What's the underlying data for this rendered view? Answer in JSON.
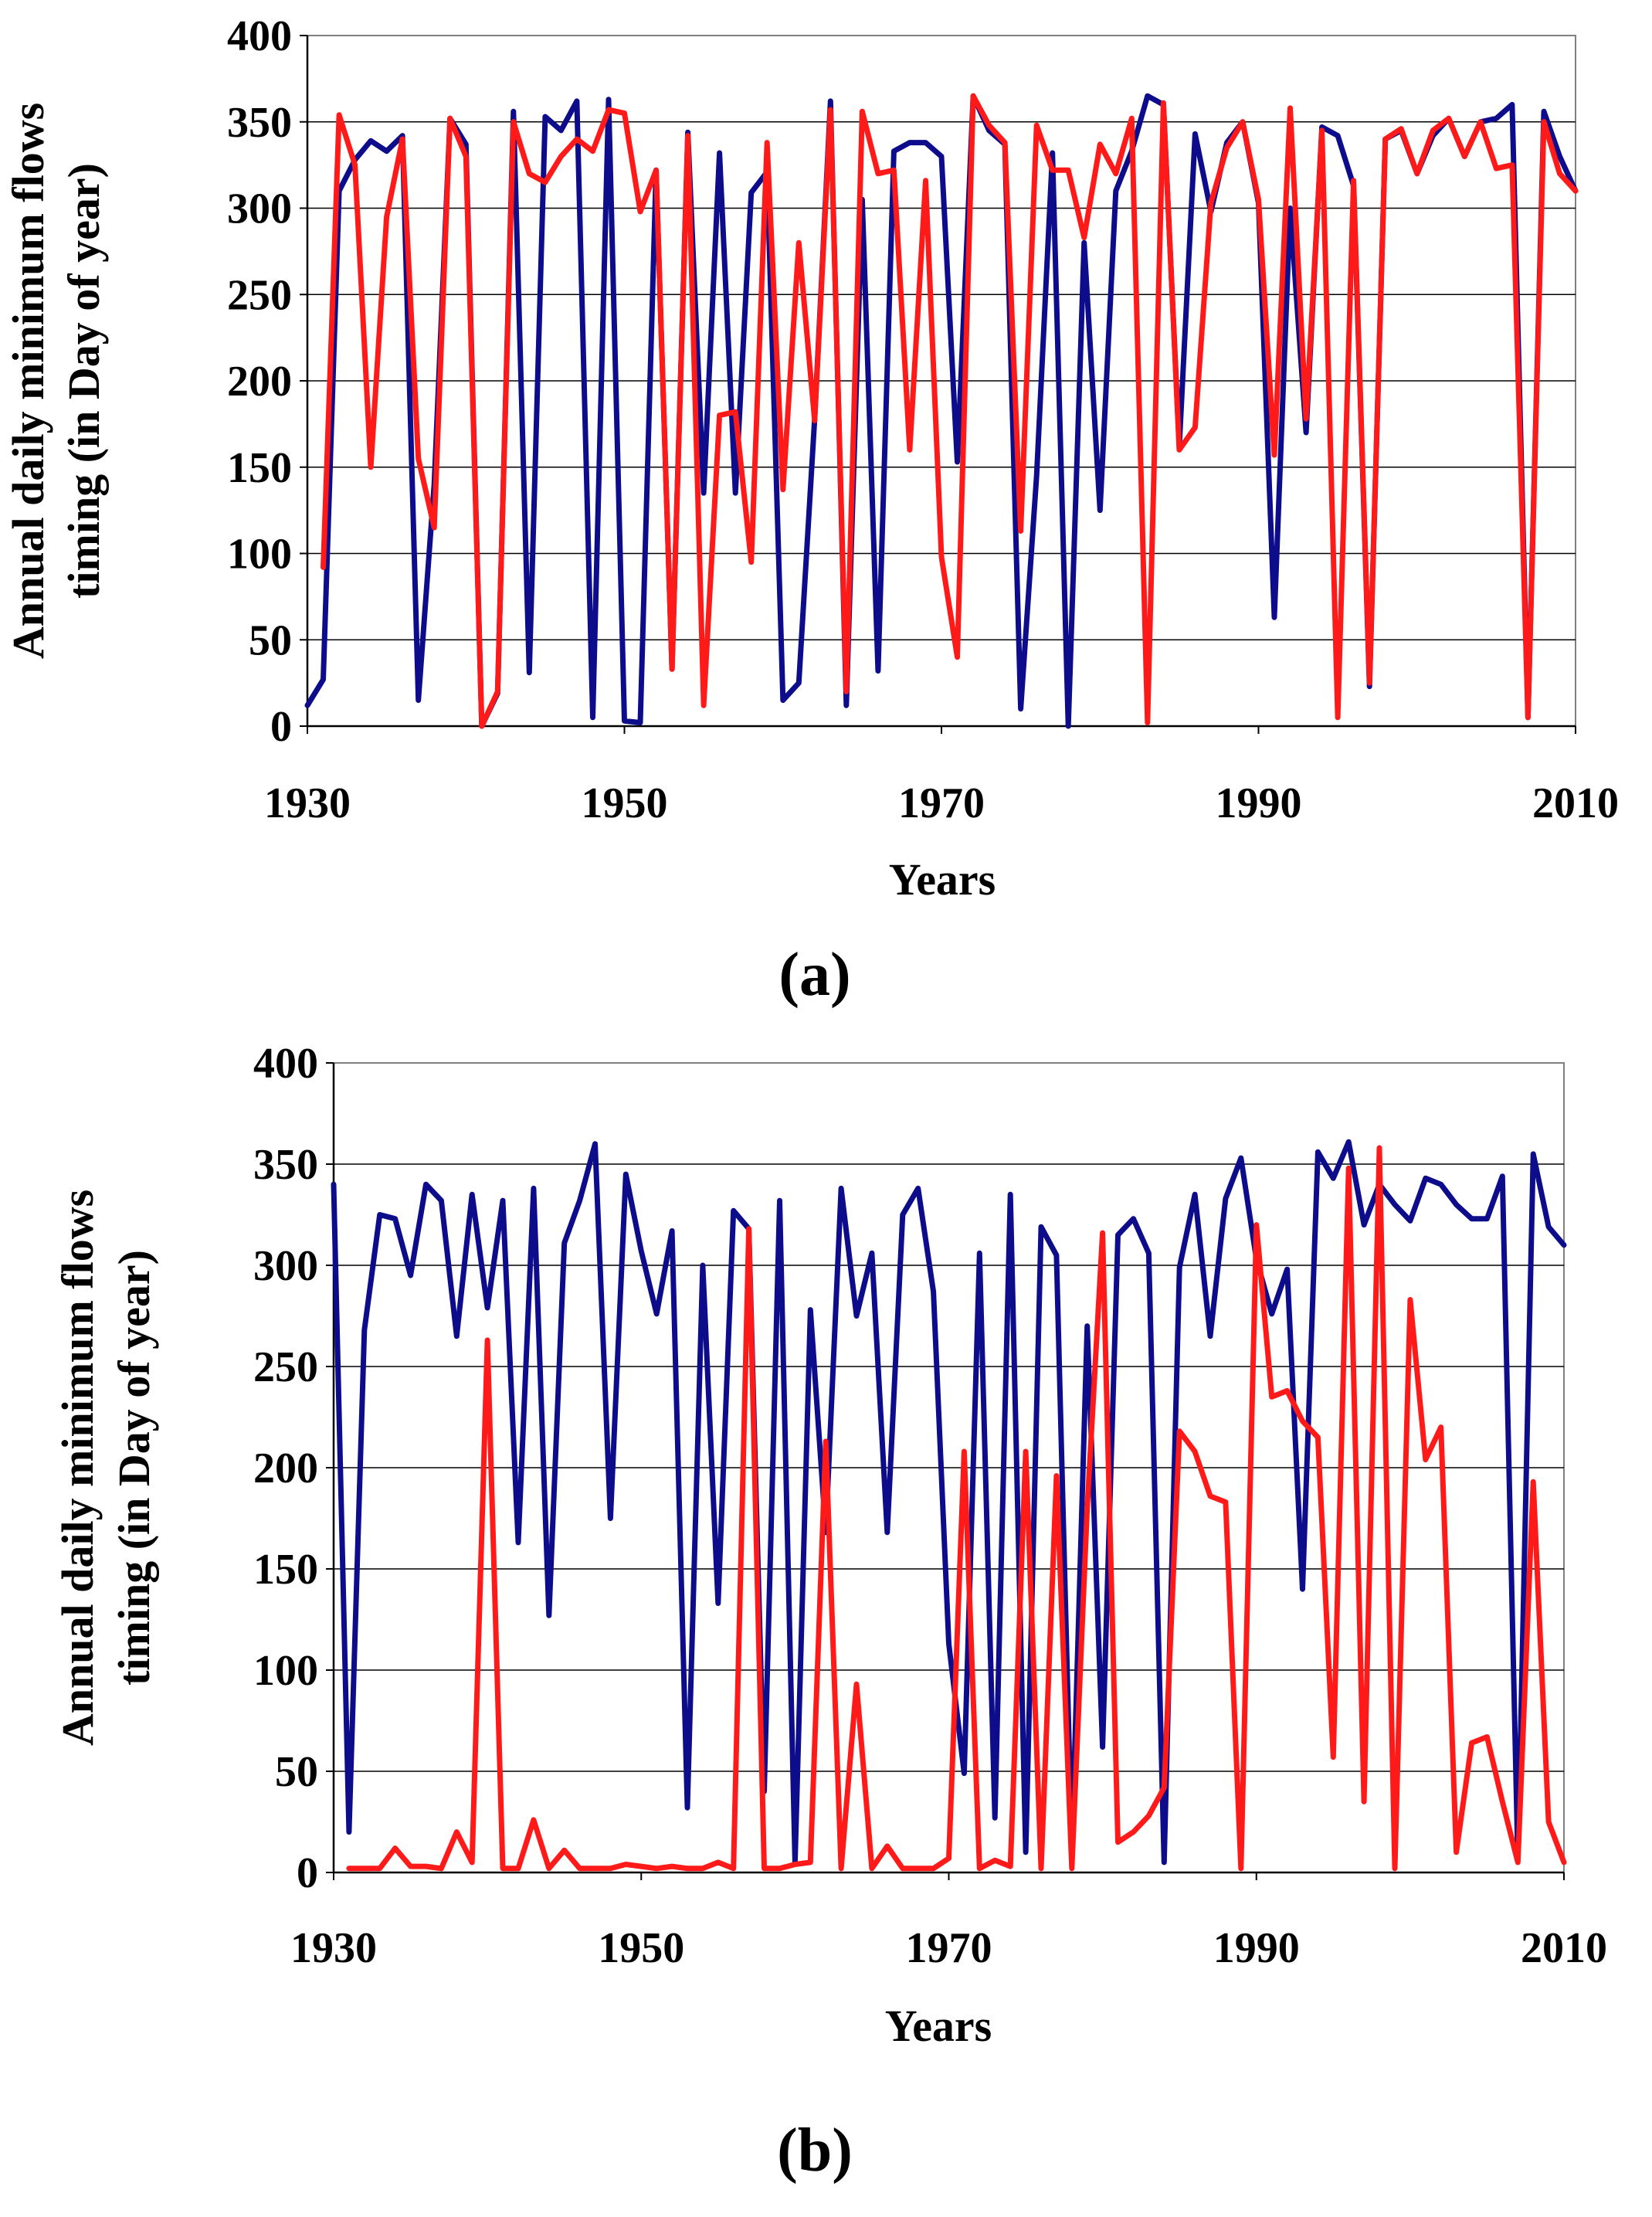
{
  "chart_data": [
    {
      "type": "line",
      "panel_label": "(a)",
      "xlabel": "Years",
      "ylabel_lines": [
        "Annual daily minimum flows",
        "timing (in Day of year)"
      ],
      "xlim": [
        1930,
        2010
      ],
      "ylim": [
        0,
        400
      ],
      "xticks": [
        "1930",
        "1950",
        "1970",
        "1990",
        "2010"
      ],
      "yticks": [
        "0",
        "50",
        "100",
        "150",
        "200",
        "250",
        "300",
        "350",
        "400"
      ],
      "grid": "horizontal",
      "series": [
        {
          "name": "blue",
          "color": "#0d0d8c",
          "x": [
            1930,
            1931,
            1932,
            1933,
            1934,
            1935,
            1936,
            1937,
            1938,
            1939,
            1940,
            1941,
            1942,
            1943,
            1944,
            1945,
            1946,
            1947,
            1948,
            1949,
            1950,
            1951,
            1952,
            1953,
            1954,
            1955,
            1956,
            1957,
            1958,
            1959,
            1960,
            1961,
            1962,
            1963,
            1964,
            1965,
            1966,
            1967,
            1968,
            1969,
            1970,
            1971,
            1972,
            1973,
            1974,
            1975,
            1976,
            1977,
            1978,
            1979,
            1980,
            1981,
            1982,
            1983,
            1984,
            1985,
            1986,
            1987,
            1988,
            1989,
            1990,
            1991,
            1992,
            1993,
            1994,
            1995,
            1996,
            1997,
            1998,
            1999,
            2000,
            2001,
            2002,
            2003,
            2004,
            2005,
            2006,
            2007,
            2008,
            2009,
            2010
          ],
          "y": [
            12,
            27,
            310,
            328,
            339,
            333,
            342,
            15,
            140,
            352,
            337,
            0,
            19,
            356,
            31,
            353,
            345,
            362,
            5,
            363,
            3,
            2,
            322,
            33,
            344,
            135,
            332,
            135,
            309,
            321,
            15,
            25,
            178,
            362,
            12,
            305,
            32,
            333,
            338,
            338,
            330,
            153,
            365,
            345,
            337,
            10,
            145,
            332,
            0,
            280,
            125,
            310,
            333,
            365,
            360,
            162,
            343,
            298,
            338,
            350,
            303,
            63,
            300,
            170,
            347,
            342,
            313,
            23,
            340,
            345,
            320,
            342,
            352,
            330,
            350,
            352,
            360,
            5,
            356,
            330,
            310
          ]
        },
        {
          "name": "red",
          "color": "#ff1a1a",
          "x": [
            1931,
            1932,
            1933,
            1934,
            1935,
            1936,
            1937,
            1938,
            1939,
            1940,
            1941,
            1942,
            1943,
            1944,
            1945,
            1946,
            1947,
            1948,
            1949,
            1950,
            1951,
            1952,
            1953,
            1954,
            1955,
            1956,
            1957,
            1958,
            1959,
            1960,
            1961,
            1962,
            1963,
            1964,
            1965,
            1966,
            1967,
            1968,
            1969,
            1970,
            1971,
            1972,
            1973,
            1974,
            1975,
            1976,
            1977,
            1978,
            1979,
            1980,
            1981,
            1982,
            1983,
            1984,
            1985,
            1986,
            1987,
            1988,
            1989,
            1990,
            1991,
            1992,
            1993,
            1994,
            1995,
            1996,
            1997,
            1998,
            1999,
            2000,
            2001,
            2002,
            2003,
            2004,
            2005,
            2006,
            2007,
            2008,
            2009,
            2010
          ],
          "y": [
            92,
            354,
            325,
            150,
            295,
            340,
            155,
            115,
            352,
            330,
            0,
            20,
            350,
            320,
            315,
            330,
            340,
            333,
            357,
            355,
            298,
            322,
            33,
            342,
            12,
            180,
            182,
            95,
            338,
            137,
            280,
            177,
            357,
            20,
            356,
            320,
            322,
            160,
            316,
            98,
            40,
            365,
            348,
            338,
            113,
            348,
            322,
            322,
            283,
            337,
            320,
            352,
            2,
            361,
            160,
            173,
            303,
            335,
            350,
            305,
            157,
            358,
            178,
            345,
            5,
            316,
            25,
            340,
            346,
            320,
            345,
            352,
            330,
            350,
            323,
            325,
            5,
            350,
            320,
            310
          ]
        }
      ]
    },
    {
      "type": "line",
      "panel_label": "(b)",
      "xlabel": "Years",
      "ylabel_lines": [
        "Annual daily minimum flows",
        "timing (in Day of year)"
      ],
      "xlim": [
        1930,
        2010
      ],
      "ylim": [
        0,
        400
      ],
      "xticks": [
        "1930",
        "1950",
        "1970",
        "1990",
        "2010"
      ],
      "yticks": [
        "0",
        "50",
        "100",
        "150",
        "200",
        "250",
        "300",
        "350",
        "400"
      ],
      "grid": "horizontal",
      "series": [
        {
          "name": "blue",
          "color": "#0d0d8c",
          "x": [
            1930,
            1931,
            1932,
            1933,
            1934,
            1935,
            1936,
            1937,
            1938,
            1939,
            1940,
            1941,
            1942,
            1943,
            1944,
            1945,
            1946,
            1947,
            1948,
            1949,
            1950,
            1951,
            1952,
            1953,
            1954,
            1955,
            1956,
            1957,
            1958,
            1959,
            1960,
            1961,
            1962,
            1963,
            1964,
            1965,
            1966,
            1967,
            1968,
            1969,
            1970,
            1971,
            1972,
            1973,
            1974,
            1975,
            1976,
            1977,
            1978,
            1979,
            1980,
            1981,
            1982,
            1983,
            1984,
            1985,
            1986,
            1987,
            1988,
            1989,
            1990,
            1991,
            1992,
            1993,
            1994,
            1995,
            1996,
            1997,
            1998,
            1999,
            2000,
            2001,
            2002,
            2003,
            2004,
            2005,
            2006,
            2007,
            2008,
            2009,
            2010
          ],
          "y": [
            340,
            20,
            268,
            325,
            323,
            295,
            340,
            332,
            265,
            335,
            279,
            332,
            163,
            338,
            127,
            311,
            332,
            360,
            175,
            345,
            307,
            276,
            317,
            32,
            300,
            133,
            327,
            318,
            40,
            332,
            5,
            278,
            168,
            338,
            275,
            306,
            168,
            325,
            338,
            287,
            113,
            49,
            306,
            27,
            335,
            10,
            319,
            305,
            11,
            270,
            62,
            315,
            323,
            306,
            5,
            299,
            335,
            265,
            333,
            353,
            303,
            276,
            298,
            140,
            356,
            343,
            361,
            320,
            340,
            330,
            322,
            343,
            340,
            330,
            323,
            323,
            344,
            6,
            355,
            319,
            310
          ]
        },
        {
          "name": "red",
          "color": "#ff1a1a",
          "x": [
            1931,
            1932,
            1933,
            1934,
            1935,
            1936,
            1937,
            1938,
            1939,
            1940,
            1941,
            1942,
            1943,
            1944,
            1945,
            1946,
            1947,
            1948,
            1949,
            1950,
            1951,
            1952,
            1953,
            1954,
            1955,
            1956,
            1957,
            1958,
            1959,
            1960,
            1961,
            1962,
            1963,
            1964,
            1965,
            1966,
            1967,
            1968,
            1969,
            1970,
            1971,
            1972,
            1973,
            1974,
            1975,
            1976,
            1977,
            1978,
            1979,
            1980,
            1981,
            1982,
            1983,
            1984,
            1985,
            1986,
            1987,
            1988,
            1989,
            1990,
            1991,
            1992,
            1993,
            1994,
            1995,
            1996,
            1997,
            1998,
            1999,
            2000,
            2001,
            2002,
            2003,
            2004,
            2005,
            2006,
            2007,
            2008,
            2009,
            2010
          ],
          "y": [
            2,
            2,
            2,
            12,
            3,
            3,
            2,
            20,
            5,
            263,
            2,
            2,
            26,
            2,
            11,
            2,
            2,
            2,
            4,
            3,
            2,
            3,
            2,
            2,
            5,
            2,
            318,
            2,
            2,
            4,
            5,
            213,
            2,
            93,
            2,
            13,
            2,
            2,
            2,
            7,
            208,
            2,
            6,
            3,
            208,
            2,
            196,
            2,
            180,
            316,
            15,
            20,
            28,
            42,
            218,
            208,
            186,
            183,
            2,
            320,
            235,
            238,
            223,
            215,
            57,
            348,
            35,
            358,
            2,
            283,
            204,
            220,
            10,
            64,
            67,
            35,
            5,
            193,
            25,
            5
          ]
        }
      ]
    }
  ]
}
